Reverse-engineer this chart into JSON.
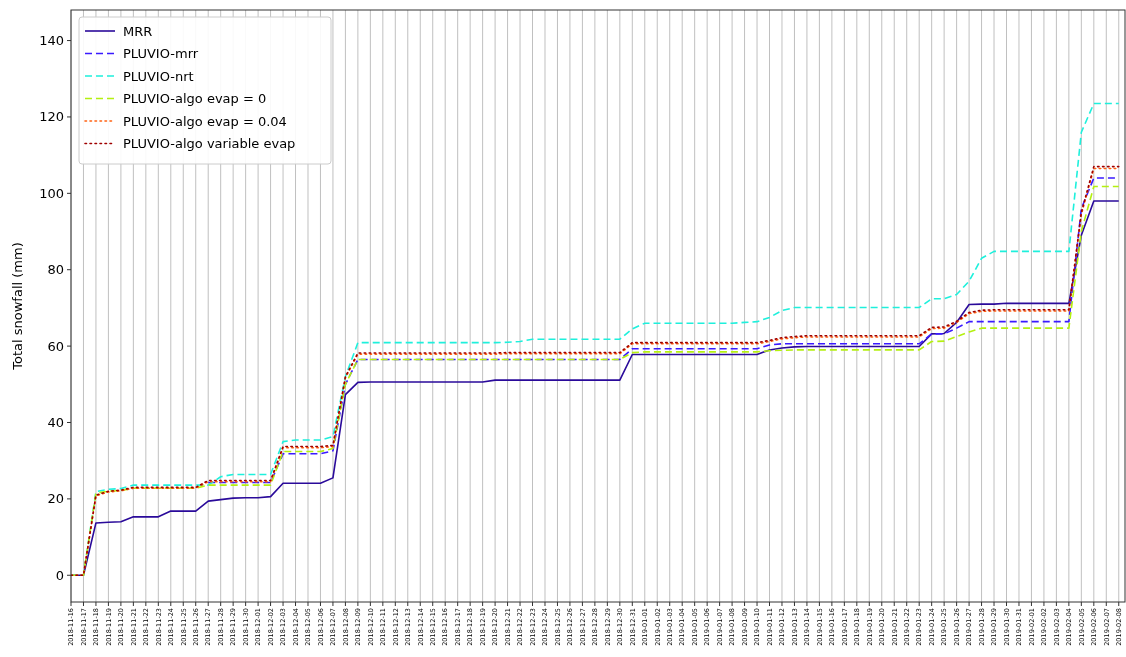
{
  "chart_data": {
    "type": "line",
    "ylabel": "Total snowfall (mm)",
    "categories": [
      "2018-11-16",
      "2018-11-17",
      "2018-11-18",
      "2018-11-19",
      "2018-11-20",
      "2018-11-21",
      "2018-11-22",
      "2018-11-23",
      "2018-11-24",
      "2018-11-25",
      "2018-11-26",
      "2018-11-27",
      "2018-11-28",
      "2018-11-29",
      "2018-11-30",
      "2018-12-01",
      "2018-12-02",
      "2018-12-03",
      "2018-12-04",
      "2018-12-05",
      "2018-12-06",
      "2018-12-07",
      "2018-12-08",
      "2018-12-09",
      "2018-12-10",
      "2018-12-11",
      "2018-12-12",
      "2018-12-13",
      "2018-12-14",
      "2018-12-15",
      "2018-12-16",
      "2018-12-17",
      "2018-12-18",
      "2018-12-19",
      "2018-12-20",
      "2018-12-21",
      "2018-12-22",
      "2018-12-23",
      "2018-12-24",
      "2018-12-25",
      "2018-12-26",
      "2018-12-27",
      "2018-12-28",
      "2018-12-29",
      "2018-12-30",
      "2018-12-31",
      "2019-01-01",
      "2019-01-02",
      "2019-01-03",
      "2019-01-04",
      "2019-01-05",
      "2019-01-06",
      "2019-01-07",
      "2019-01-08",
      "2019-01-09",
      "2019-01-10",
      "2019-01-11",
      "2019-01-12",
      "2019-01-13",
      "2019-01-14",
      "2019-01-15",
      "2019-01-16",
      "2019-01-17",
      "2019-01-18",
      "2019-01-19",
      "2019-01-20",
      "2019-01-21",
      "2019-01-22",
      "2019-01-23",
      "2019-01-24",
      "2019-01-25",
      "2019-01-26",
      "2019-01-27",
      "2019-01-28",
      "2019-01-29",
      "2019-01-30",
      "2019-01-31",
      "2019-02-01",
      "2019-02-02",
      "2019-02-03",
      "2019-02-04",
      "2019-02-05",
      "2019-02-06",
      "2019-02-07",
      "2019-02-08"
    ],
    "series": [
      {
        "name": "MRR",
        "color": "#2a0a9a",
        "line_style": "solid",
        "values": [
          0,
          0,
          13.7,
          13.9,
          14,
          15.3,
          15.3,
          15.3,
          16.8,
          16.8,
          16.8,
          19.4,
          19.8,
          20.2,
          20.3,
          20.3,
          20.6,
          24.1,
          24.1,
          24.1,
          24.1,
          25.5,
          47.3,
          50.5,
          50.6,
          50.6,
          50.6,
          50.6,
          50.6,
          50.6,
          50.6,
          50.6,
          50.6,
          50.6,
          51.1,
          51.1,
          51.1,
          51.1,
          51.1,
          51.1,
          51.1,
          51.1,
          51.1,
          51.1,
          51.1,
          57.8,
          57.8,
          57.8,
          57.8,
          57.8,
          57.8,
          57.8,
          57.8,
          57.8,
          57.8,
          57.8,
          59.0,
          59.5,
          59.8,
          59.9,
          59.9,
          59.9,
          59.9,
          59.9,
          59.9,
          59.9,
          59.9,
          59.9,
          59.9,
          63.2,
          63.3,
          66.2,
          70.9,
          71,
          71,
          71.2,
          71.2,
          71.2,
          71.2,
          71.2,
          71.2,
          89,
          98,
          98,
          98
        ]
      },
      {
        "name": "PLUVIO-mrr",
        "color": "#3a1aff",
        "line_style": "dashed",
        "values": [
          null,
          null,
          null,
          null,
          null,
          null,
          null,
          null,
          null,
          null,
          null,
          24.3,
          24.3,
          24.3,
          24.3,
          24.3,
          24.3,
          31.8,
          31.8,
          31.8,
          31.8,
          32.6,
          50,
          56.5,
          56.5,
          56.5,
          56.5,
          56.5,
          56.5,
          56.5,
          56.5,
          56.5,
          56.5,
          56.5,
          56.5,
          56.5,
          56.5,
          56.5,
          56.5,
          56.5,
          56.5,
          56.5,
          56.5,
          56.5,
          56.5,
          59.3,
          59.3,
          59.3,
          59.3,
          59.3,
          59.3,
          59.3,
          59.3,
          59.3,
          59.3,
          59.3,
          60.3,
          60.6,
          60.6,
          60.6,
          60.6,
          60.6,
          60.6,
          60.6,
          60.6,
          60.6,
          60.6,
          60.6,
          60.6,
          63.2,
          63.2,
          64.7,
          66.4,
          66.4,
          66.4,
          66.4,
          66.4,
          66.4,
          66.4,
          66.4,
          66.4,
          96,
          104,
          104,
          104
        ]
      },
      {
        "name": "PLUVIO-nrt",
        "color": "#1ef0dc",
        "line_style": "dashed",
        "values": [
          0,
          0,
          21.9,
          22.5,
          22.7,
          23.6,
          23.6,
          23.6,
          23.6,
          23.6,
          23.6,
          23.6,
          25.8,
          26.4,
          26.4,
          26.4,
          26.4,
          35.0,
          35.4,
          35.4,
          35.4,
          36.3,
          52,
          60.9,
          60.9,
          60.9,
          60.9,
          60.9,
          60.9,
          60.9,
          60.9,
          60.9,
          60.9,
          60.9,
          60.9,
          61.0,
          61.2,
          61.8,
          61.8,
          61.8,
          61.8,
          61.8,
          61.8,
          61.8,
          61.8,
          64.5,
          66,
          66,
          66,
          66,
          66,
          66,
          66,
          66,
          66.2,
          66.4,
          67.5,
          69.3,
          70.1,
          70.1,
          70.1,
          70.1,
          70.1,
          70.1,
          70.1,
          70.1,
          70.1,
          70.1,
          70.1,
          72.4,
          72.4,
          73.5,
          77,
          83,
          84.8,
          84.8,
          84.8,
          84.8,
          84.8,
          84.8,
          84.8,
          116,
          123.5,
          123.5,
          123.5
        ]
      },
      {
        "name": "PLUVIO-algo evap = 0",
        "color": "#b4f010",
        "line_style": "dashed",
        "values": [
          0,
          0,
          21.5,
          22,
          22.2,
          22.8,
          22.8,
          22.8,
          22.8,
          22.8,
          22.8,
          23.6,
          23.6,
          23.6,
          23.6,
          23.6,
          23.6,
          32.4,
          32.4,
          32.4,
          32.4,
          33.2,
          50,
          56.5,
          56.5,
          56.5,
          56.5,
          56.5,
          56.5,
          56.5,
          56.5,
          56.5,
          56.5,
          56.5,
          56.5,
          56.5,
          56.5,
          56.5,
          56.5,
          56.5,
          56.5,
          56.5,
          56.5,
          56.5,
          56.5,
          58.3,
          58.5,
          58.5,
          58.5,
          58.5,
          58.5,
          58.5,
          58.5,
          58.5,
          58.5,
          58.5,
          58.8,
          58.9,
          59,
          59,
          59,
          59,
          59,
          59,
          59,
          59,
          59,
          59,
          59,
          61.2,
          61.3,
          62.5,
          63.7,
          64.7,
          64.7,
          64.7,
          64.7,
          64.7,
          64.7,
          64.7,
          64.7,
          90,
          101.8,
          101.8,
          101.8
        ]
      },
      {
        "name": "PLUVIO-algo evap = 0.04",
        "color": "#ff6010",
        "line_style": "dotted",
        "values": [
          0,
          0,
          20.8,
          21.8,
          22.1,
          22.8,
          22.8,
          22.8,
          22.8,
          22.8,
          22.8,
          24.5,
          24.5,
          24.5,
          24.5,
          24.5,
          24.5,
          33.4,
          33.4,
          33.4,
          33.4,
          33.7,
          51.7,
          57.9,
          57.9,
          57.9,
          57.9,
          57.9,
          57.9,
          57.9,
          57.9,
          57.9,
          57.9,
          57.9,
          57.9,
          58,
          58,
          58,
          58,
          58,
          58,
          58,
          58,
          58,
          58,
          60.6,
          60.6,
          60.6,
          60.6,
          60.6,
          60.6,
          60.6,
          60.6,
          60.6,
          60.6,
          60.6,
          61.2,
          61.9,
          62.2,
          62.4,
          62.4,
          62.4,
          62.4,
          62.4,
          62.4,
          62.4,
          62.4,
          62.4,
          62.4,
          64.6,
          64.7,
          66.2,
          68.5,
          69.1,
          69.2,
          69.2,
          69.2,
          69.2,
          69.2,
          69.2,
          69.2,
          94.5,
          106.5,
          106.5,
          106.5
        ]
      },
      {
        "name": "PLUVIO-algo variable evap",
        "color": "#a00000",
        "line_style": "dotted",
        "values": [
          0,
          0,
          21,
          22,
          22.3,
          23,
          23,
          23,
          23,
          23,
          23,
          24.8,
          24.8,
          24.8,
          24.8,
          24.8,
          24.8,
          33.7,
          33.7,
          33.7,
          33.7,
          34,
          52,
          58.2,
          58.2,
          58.2,
          58.2,
          58.2,
          58.2,
          58.2,
          58.2,
          58.2,
          58.2,
          58.2,
          58.2,
          58.3,
          58.3,
          58.3,
          58.3,
          58.3,
          58.3,
          58.3,
          58.3,
          58.3,
          58.3,
          60.9,
          60.9,
          60.9,
          60.9,
          60.9,
          60.9,
          60.9,
          60.9,
          60.9,
          60.9,
          60.9,
          61.5,
          62.2,
          62.5,
          62.7,
          62.7,
          62.7,
          62.7,
          62.7,
          62.7,
          62.7,
          62.7,
          62.7,
          62.7,
          64.9,
          65,
          66.5,
          68.8,
          69.4,
          69.5,
          69.5,
          69.5,
          69.5,
          69.5,
          69.5,
          69.5,
          95,
          107,
          107,
          107
        ]
      }
    ],
    "ylim": [
      -7,
      148
    ],
    "yticks": [
      0,
      20,
      40,
      60,
      80,
      100,
      120,
      140
    ],
    "grid": "x",
    "legend": "top left"
  }
}
